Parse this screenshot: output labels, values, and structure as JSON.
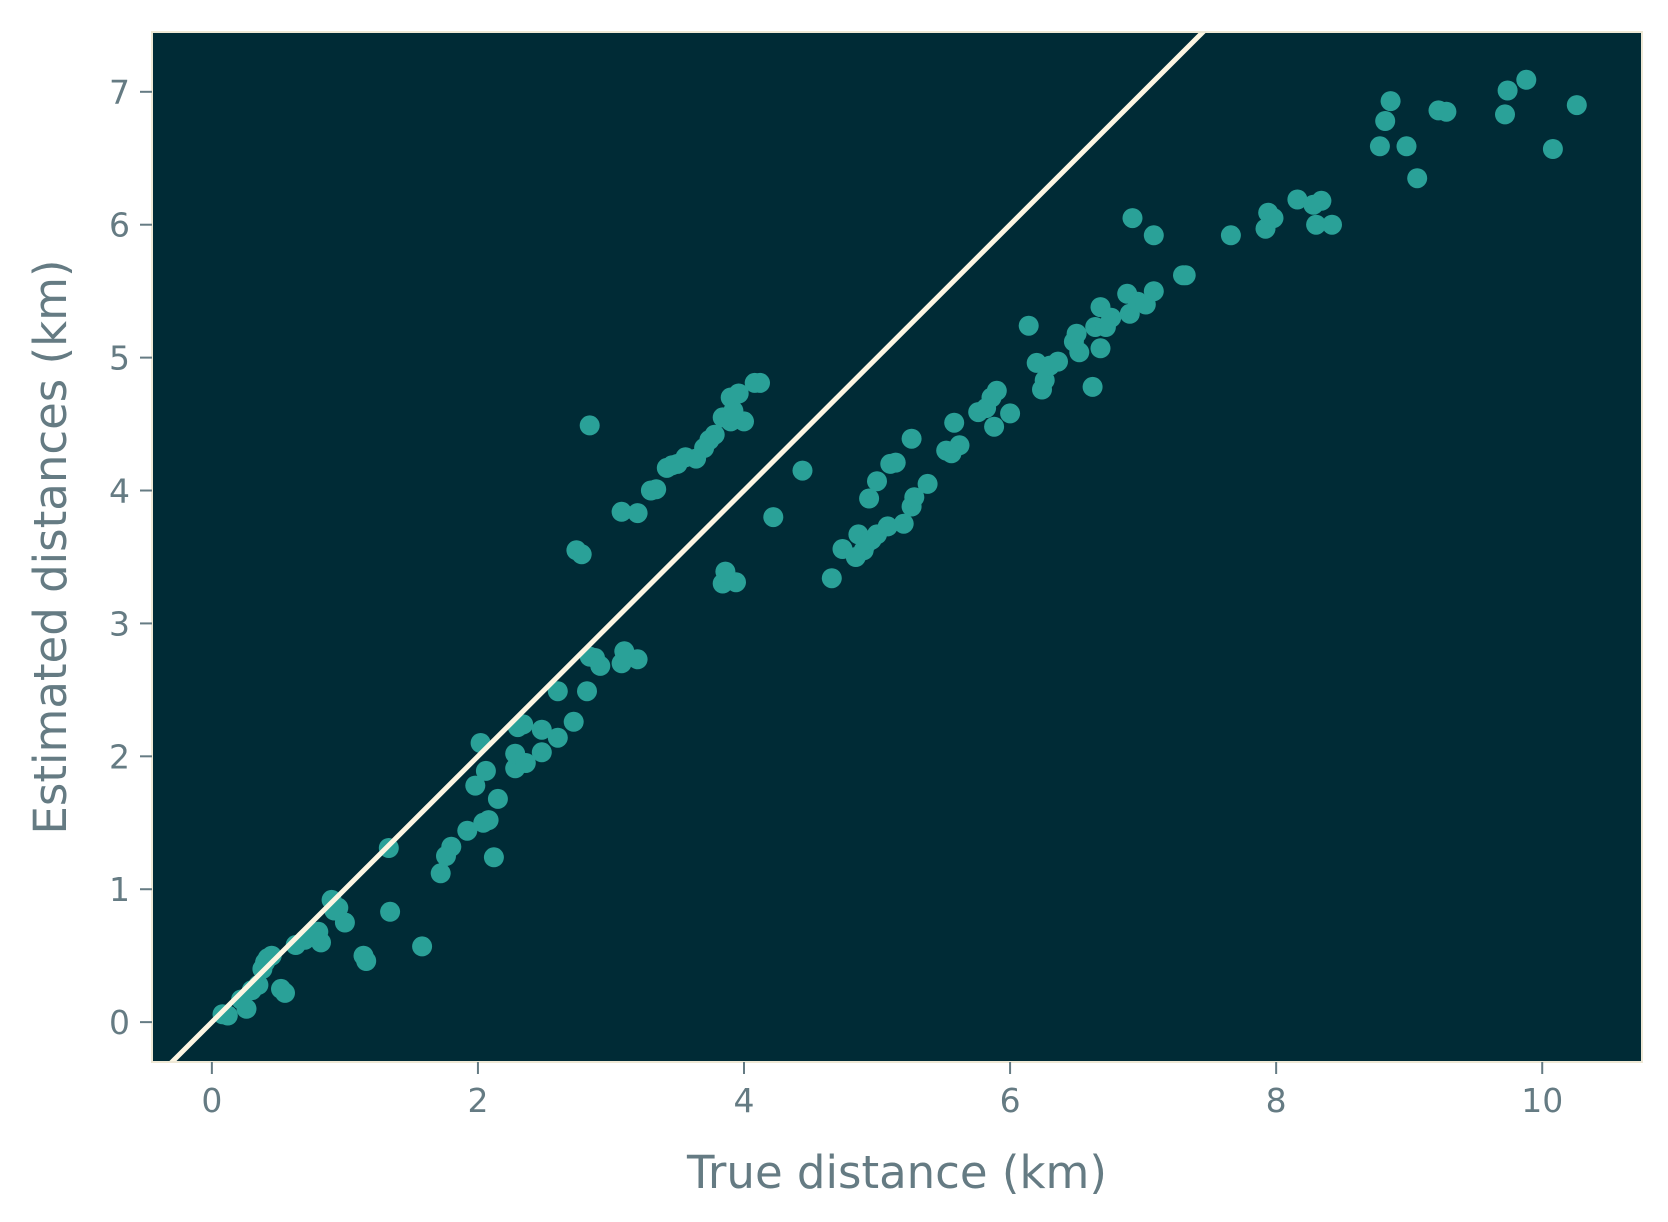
{
  "chart_data": {
    "type": "scatter",
    "xlabel": "True distance (km)",
    "ylabel": "Estimated distances (km)",
    "xlim": [
      -0.45,
      10.75
    ],
    "ylim": [
      -0.3,
      7.45
    ],
    "x_ticks": [
      0,
      2,
      4,
      6,
      8,
      10
    ],
    "y_ticks": [
      0,
      1,
      2,
      3,
      4,
      5,
      6,
      7
    ],
    "grid": false,
    "legend": "none",
    "colors": {
      "background": "#002b36",
      "points": "#2aa198",
      "reference_line": "#fdf6e3",
      "frame": "#eee8d5",
      "text": "#657b83"
    },
    "reference_line": {
      "type": "identity",
      "label": ""
    },
    "points": [
      [
        0.08,
        0.06
      ],
      [
        0.12,
        0.05
      ],
      [
        0.22,
        0.17
      ],
      [
        0.26,
        0.1
      ],
      [
        0.3,
        0.24
      ],
      [
        0.35,
        0.28
      ],
      [
        0.38,
        0.4
      ],
      [
        0.4,
        0.45
      ],
      [
        0.42,
        0.48
      ],
      [
        0.45,
        0.5
      ],
      [
        0.52,
        0.25
      ],
      [
        0.55,
        0.22
      ],
      [
        0.63,
        0.58
      ],
      [
        0.7,
        0.62
      ],
      [
        0.76,
        0.65
      ],
      [
        0.8,
        0.68
      ],
      [
        0.82,
        0.6
      ],
      [
        0.9,
        0.92
      ],
      [
        0.92,
        0.84
      ],
      [
        0.95,
        0.86
      ],
      [
        1.0,
        0.75
      ],
      [
        1.14,
        0.5
      ],
      [
        1.16,
        0.46
      ],
      [
        1.33,
        1.31
      ],
      [
        1.34,
        0.83
      ],
      [
        1.58,
        0.57
      ],
      [
        1.72,
        1.12
      ],
      [
        1.76,
        1.25
      ],
      [
        1.8,
        1.32
      ],
      [
        1.92,
        1.44
      ],
      [
        1.98,
        1.78
      ],
      [
        2.02,
        2.1
      ],
      [
        2.04,
        1.5
      ],
      [
        2.06,
        1.89
      ],
      [
        2.08,
        1.52
      ],
      [
        2.12,
        1.24
      ],
      [
        2.15,
        1.68
      ],
      [
        2.28,
        1.91
      ],
      [
        2.28,
        2.02
      ],
      [
        2.3,
        2.22
      ],
      [
        2.34,
        2.24
      ],
      [
        2.36,
        1.95
      ],
      [
        2.48,
        2.2
      ],
      [
        2.48,
        2.03
      ],
      [
        2.6,
        2.14
      ],
      [
        2.6,
        2.49
      ],
      [
        2.72,
        2.26
      ],
      [
        2.74,
        3.55
      ],
      [
        2.78,
        3.52
      ],
      [
        2.82,
        2.49
      ],
      [
        2.84,
        2.75
      ],
      [
        2.84,
        4.49
      ],
      [
        2.88,
        2.74
      ],
      [
        2.92,
        2.68
      ],
      [
        3.08,
        3.84
      ],
      [
        3.08,
        2.7
      ],
      [
        3.1,
        2.79
      ],
      [
        3.2,
        2.73
      ],
      [
        3.2,
        3.83
      ],
      [
        3.3,
        4.0
      ],
      [
        3.34,
        4.01
      ],
      [
        3.42,
        4.17
      ],
      [
        3.46,
        4.19
      ],
      [
        3.5,
        4.2
      ],
      [
        3.56,
        4.25
      ],
      [
        3.64,
        4.24
      ],
      [
        3.7,
        4.32
      ],
      [
        3.74,
        4.38
      ],
      [
        3.78,
        4.42
      ],
      [
        3.84,
        4.55
      ],
      [
        3.84,
        3.3
      ],
      [
        3.86,
        3.39
      ],
      [
        3.9,
        4.7
      ],
      [
        3.9,
        4.52
      ],
      [
        3.92,
        4.6
      ],
      [
        3.94,
        3.31
      ],
      [
        3.96,
        4.73
      ],
      [
        4.0,
        4.52
      ],
      [
        4.08,
        4.81
      ],
      [
        4.12,
        4.81
      ],
      [
        4.22,
        3.8
      ],
      [
        4.44,
        4.15
      ],
      [
        4.66,
        3.34
      ],
      [
        4.74,
        3.56
      ],
      [
        4.84,
        3.5
      ],
      [
        4.86,
        3.67
      ],
      [
        4.9,
        3.55
      ],
      [
        4.92,
        3.6
      ],
      [
        4.94,
        3.94
      ],
      [
        4.96,
        3.63
      ],
      [
        5.0,
        3.67
      ],
      [
        5.0,
        4.07
      ],
      [
        5.08,
        3.73
      ],
      [
        5.1,
        4.2
      ],
      [
        5.14,
        4.21
      ],
      [
        5.2,
        3.75
      ],
      [
        5.26,
        4.39
      ],
      [
        5.26,
        3.88
      ],
      [
        5.28,
        3.95
      ],
      [
        5.38,
        4.05
      ],
      [
        5.52,
        4.3
      ],
      [
        5.56,
        4.28
      ],
      [
        5.58,
        4.51
      ],
      [
        5.62,
        4.34
      ],
      [
        5.76,
        4.59
      ],
      [
        5.82,
        4.62
      ],
      [
        5.86,
        4.7
      ],
      [
        5.88,
        4.48
      ],
      [
        5.9,
        4.75
      ],
      [
        6.0,
        4.58
      ],
      [
        6.14,
        5.24
      ],
      [
        6.2,
        4.96
      ],
      [
        6.24,
        4.76
      ],
      [
        6.26,
        4.83
      ],
      [
        6.3,
        4.94
      ],
      [
        6.36,
        4.97
      ],
      [
        6.48,
        5.12
      ],
      [
        6.5,
        5.18
      ],
      [
        6.52,
        5.04
      ],
      [
        6.62,
        4.78
      ],
      [
        6.64,
        5.23
      ],
      [
        6.68,
        5.38
      ],
      [
        6.68,
        5.07
      ],
      [
        6.72,
        5.23
      ],
      [
        6.76,
        5.3
      ],
      [
        6.88,
        5.48
      ],
      [
        6.9,
        5.33
      ],
      [
        6.92,
        6.05
      ],
      [
        6.96,
        5.42
      ],
      [
        7.02,
        5.4
      ],
      [
        7.08,
        5.92
      ],
      [
        7.08,
        5.5
      ],
      [
        7.3,
        5.62
      ],
      [
        7.32,
        5.62
      ],
      [
        7.66,
        5.92
      ],
      [
        7.92,
        5.97
      ],
      [
        7.94,
        6.09
      ],
      [
        7.98,
        6.05
      ],
      [
        8.16,
        6.19
      ],
      [
        8.28,
        6.15
      ],
      [
        8.3,
        6.0
      ],
      [
        8.34,
        6.18
      ],
      [
        8.42,
        6.0
      ],
      [
        8.78,
        6.59
      ],
      [
        8.82,
        6.78
      ],
      [
        8.86,
        6.93
      ],
      [
        8.98,
        6.59
      ],
      [
        9.06,
        6.35
      ],
      [
        9.22,
        6.86
      ],
      [
        9.28,
        6.85
      ],
      [
        9.72,
        6.83
      ],
      [
        9.74,
        7.01
      ],
      [
        9.88,
        7.09
      ],
      [
        10.08,
        6.57
      ],
      [
        10.26,
        6.9
      ]
    ]
  }
}
